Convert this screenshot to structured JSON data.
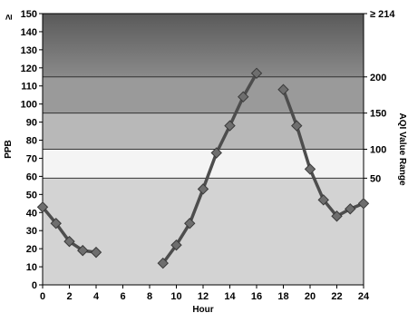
{
  "chart_data": {
    "type": "line",
    "xlabel": "Hour",
    "ylabel": "PPB",
    "y2label": "AQI Value Range",
    "xlim": [
      0,
      24
    ],
    "ylim": [
      0,
      150
    ],
    "x_ticks": [
      0,
      2,
      4,
      6,
      8,
      10,
      12,
      14,
      16,
      18,
      20,
      22,
      24
    ],
    "y_ticks": [
      0,
      10,
      20,
      30,
      40,
      50,
      60,
      70,
      80,
      90,
      100,
      110,
      120,
      130,
      140,
      150
    ],
    "y_top_label": "≥ 150",
    "y2_ticks": [
      {
        "ppb": 59,
        "label": "50"
      },
      {
        "ppb": 75,
        "label": "100"
      },
      {
        "ppb": 95,
        "label": "150"
      },
      {
        "ppb": 115,
        "label": "200"
      },
      {
        "ppb": 150,
        "label": "≥ 214"
      }
    ],
    "aqi_bands": [
      {
        "from": 0,
        "to": 59,
        "color": "#d3d3d3"
      },
      {
        "from": 59,
        "to": 75,
        "color": "#f4f4f4"
      },
      {
        "from": 75,
        "to": 95,
        "color": "#b8b8b8"
      },
      {
        "from": 95,
        "to": 115,
        "color": "#9a9a9a"
      },
      {
        "from": 115,
        "to": 150,
        "color": "#707070"
      }
    ],
    "series": [
      {
        "color": "#4d4d4d",
        "segments": [
          {
            "x": [
              0,
              1,
              2,
              3,
              4
            ],
            "y": [
              43,
              34,
              24,
              19,
              18
            ]
          },
          {
            "x": [
              9,
              10,
              11,
              12,
              13,
              14,
              15,
              16
            ],
            "y": [
              12,
              22,
              34,
              53,
              73,
              88,
              104,
              117
            ]
          },
          {
            "x": [
              18,
              19,
              20,
              21,
              22,
              23,
              24
            ],
            "y": [
              108,
              88,
              64,
              47,
              38,
              42,
              45
            ]
          }
        ]
      }
    ]
  }
}
